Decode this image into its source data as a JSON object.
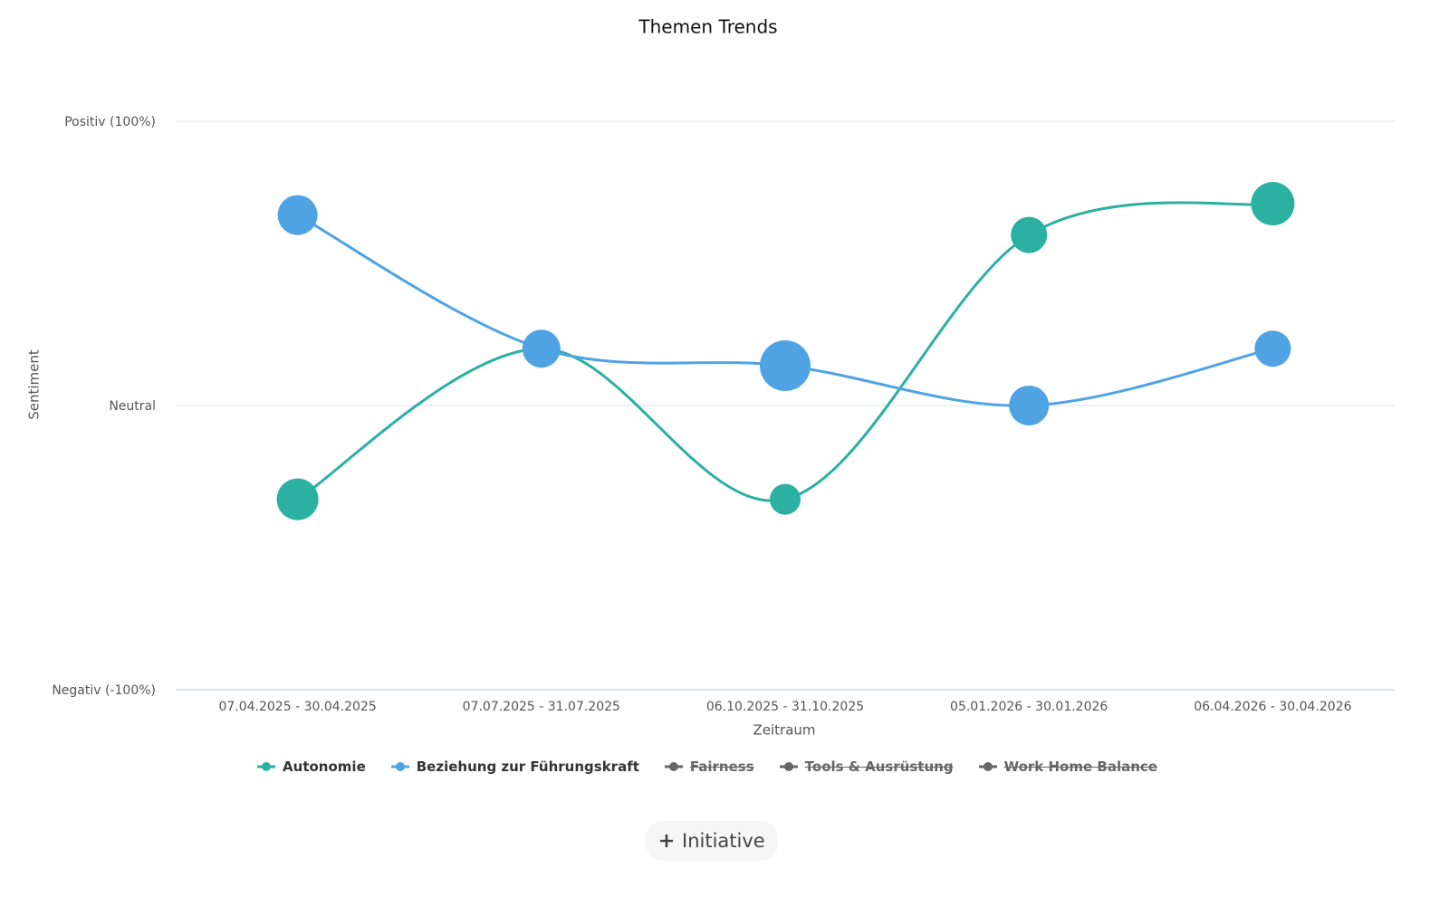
{
  "chart_data": {
    "type": "line",
    "title": "Themen Trends",
    "x_label": "Zeitraum",
    "y_label": "Sentiment",
    "categories": [
      "07.04.2025 - 30.04.2025",
      "07.07.2025 - 31.07.2025",
      "06.10.2025 - 31.10.2025",
      "05.01.2026 - 30.01.2026",
      "06.04.2026 - 30.04.2026"
    ],
    "ylim": [
      -100,
      100
    ],
    "yticks": [
      {
        "value": -100,
        "label": "Negativ (-100%)"
      },
      {
        "value": 0,
        "label": "Neutral"
      },
      {
        "value": 100,
        "label": "Positiv (100%)"
      }
    ],
    "grid": true,
    "smooth": true,
    "legend": "bottom",
    "series": [
      {
        "name": "Autonomie",
        "color": "#2bb0a2",
        "visible": true,
        "values": [
          -33,
          20,
          -33,
          60,
          71
        ],
        "sizes": [
          23,
          18,
          17,
          20,
          24
        ]
      },
      {
        "name": "Beziehung zur Führungskraft",
        "color": "#4fa3e3",
        "visible": true,
        "values": [
          67,
          20,
          14,
          0,
          20
        ],
        "sizes": [
          22,
          21,
          28,
          22,
          20
        ]
      },
      {
        "name": "Fairness",
        "color": "#666666",
        "visible": false,
        "values": [
          null,
          null,
          null,
          null,
          null
        ]
      },
      {
        "name": "Tools & Ausrüstung",
        "color": "#666666",
        "visible": false,
        "values": [
          null,
          null,
          null,
          null,
          null
        ]
      },
      {
        "name": "Work Home Balance",
        "color": "#666666",
        "visible": false,
        "values": [
          null,
          null,
          null,
          null,
          null
        ]
      }
    ]
  },
  "button": {
    "label": "Initiative"
  }
}
